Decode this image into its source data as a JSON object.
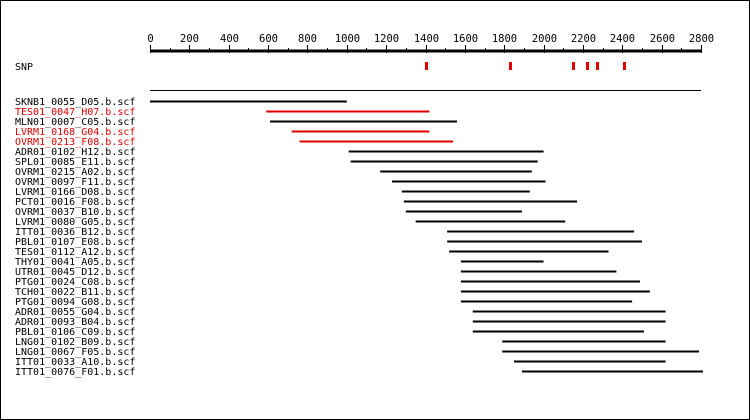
{
  "axis": {
    "ticks": [
      0,
      200,
      400,
      600,
      800,
      1000,
      1200,
      1400,
      1600,
      1800,
      2000,
      2200,
      2400,
      2600,
      2800
    ],
    "range": [
      0,
      2800
    ]
  },
  "snp": {
    "label": "SNP",
    "positions": [
      1400,
      1830,
      2150,
      2220,
      2270,
      2410
    ],
    "color": "#e00000"
  },
  "colors": {
    "highlight": "#e00000",
    "normal": "#000000"
  },
  "chart_data": {
    "type": "alignment",
    "xlim": [
      0,
      2800
    ],
    "reads": [
      {
        "name": "SKNB1_0055_D05.b.scf",
        "start": 0,
        "end": 1000,
        "highlight": false
      },
      {
        "name": "TES01_0047_H07.b.scf",
        "start": 590,
        "end": 1420,
        "highlight": true
      },
      {
        "name": "MLN01_0007_C05.b.scf",
        "start": 610,
        "end": 1560,
        "highlight": false
      },
      {
        "name": "LVRM1_0168_G04.b.scf",
        "start": 720,
        "end": 1420,
        "highlight": true
      },
      {
        "name": "OVRM1_0213_F08.b.scf",
        "start": 760,
        "end": 1540,
        "highlight": true
      },
      {
        "name": "ADR01_0102_H12.b.scf",
        "start": 1010,
        "end": 2000,
        "highlight": false
      },
      {
        "name": "SPL01_0085_E11.b.scf",
        "start": 1020,
        "end": 1970,
        "highlight": false
      },
      {
        "name": "OVRM1_0215_A02.b.scf",
        "start": 1170,
        "end": 1940,
        "highlight": false
      },
      {
        "name": "OVRM1_0097_F11.b.scf",
        "start": 1230,
        "end": 2010,
        "highlight": false
      },
      {
        "name": "LVRM1_0166_D08.b.scf",
        "start": 1280,
        "end": 1930,
        "highlight": false
      },
      {
        "name": "PCT01_0016_F08.b.scf",
        "start": 1290,
        "end": 2170,
        "highlight": false
      },
      {
        "name": "OVRM1_0037_B10.b.scf",
        "start": 1300,
        "end": 1890,
        "highlight": false
      },
      {
        "name": "LVRM1_0080_G05.b.scf",
        "start": 1350,
        "end": 2110,
        "highlight": false
      },
      {
        "name": "ITT01_0036_B12.b.scf",
        "start": 1510,
        "end": 2460,
        "highlight": false
      },
      {
        "name": "PBL01_0107_E08.b.scf",
        "start": 1510,
        "end": 2500,
        "highlight": false
      },
      {
        "name": "TES01_0112_A12.b.scf",
        "start": 1520,
        "end": 2330,
        "highlight": false
      },
      {
        "name": "THY01_0041_A05.b.scf",
        "start": 1580,
        "end": 2000,
        "highlight": false
      },
      {
        "name": "UTR01_0045_D12.b.scf",
        "start": 1580,
        "end": 2370,
        "highlight": false
      },
      {
        "name": "PTG01_0024_C08.b.scf",
        "start": 1580,
        "end": 2490,
        "highlight": false
      },
      {
        "name": "TCH01_0022_B11.b.scf",
        "start": 1580,
        "end": 2540,
        "highlight": false
      },
      {
        "name": "PTG01_0094_G08.b.scf",
        "start": 1580,
        "end": 2450,
        "highlight": false
      },
      {
        "name": "ADR01_0055_G04.b.scf",
        "start": 1640,
        "end": 2620,
        "highlight": false
      },
      {
        "name": "ADR01_0093_B04.b.scf",
        "start": 1640,
        "end": 2620,
        "highlight": false
      },
      {
        "name": "PBL01_0106_C09.b.scf",
        "start": 1640,
        "end": 2510,
        "highlight": false
      },
      {
        "name": "LNG01_0102_B09.b.scf",
        "start": 1790,
        "end": 2620,
        "highlight": false
      },
      {
        "name": "LNG01_0067_F05.b.scf",
        "start": 1790,
        "end": 2790,
        "highlight": false
      },
      {
        "name": "ITT01_0033_A10.b.scf",
        "start": 1850,
        "end": 2620,
        "highlight": false
      },
      {
        "name": "ITT01_0076_F01.b.scf",
        "start": 1890,
        "end": 2810,
        "highlight": false
      }
    ]
  }
}
